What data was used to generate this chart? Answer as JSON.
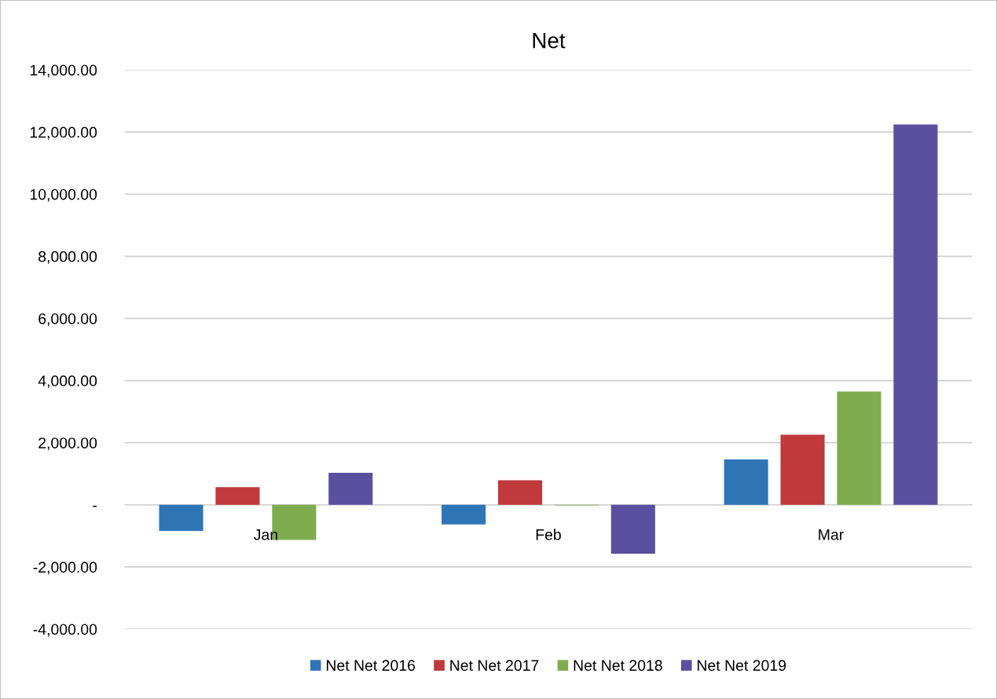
{
  "chart_data": {
    "type": "bar",
    "title": "Net",
    "categories": [
      "Jan",
      "Feb",
      "Mar"
    ],
    "series": [
      {
        "name": "Net Net 2016",
        "color": "#2e75b6",
        "values": [
          -840,
          -630,
          1460
        ]
      },
      {
        "name": "Net Net 2017",
        "color": "#c0393b",
        "values": [
          570,
          790,
          2260
        ]
      },
      {
        "name": "Net Net 2018",
        "color": "#7fac4f",
        "values": [
          -1130,
          -20,
          3650
        ]
      },
      {
        "name": "Net Net 2019",
        "color": "#5b4fa0",
        "values": [
          1030,
          -1570,
          12240
        ]
      }
    ],
    "ylim": [
      -4000,
      14000
    ],
    "yticks": [
      {
        "value": -4000,
        "label": "-4,000.00"
      },
      {
        "value": -2000,
        "label": "-2,000.00"
      },
      {
        "value": 0,
        "label": "-"
      },
      {
        "value": 2000,
        "label": "2,000.00"
      },
      {
        "value": 4000,
        "label": "4,000.00"
      },
      {
        "value": 6000,
        "label": "6,000.00"
      },
      {
        "value": 8000,
        "label": "8,000.00"
      },
      {
        "value": 10000,
        "label": "10,000.00"
      },
      {
        "value": 12000,
        "label": "12,000.00"
      },
      {
        "value": 14000,
        "label": "14,000.00"
      }
    ],
    "grid": "y",
    "legend": "bottom"
  }
}
